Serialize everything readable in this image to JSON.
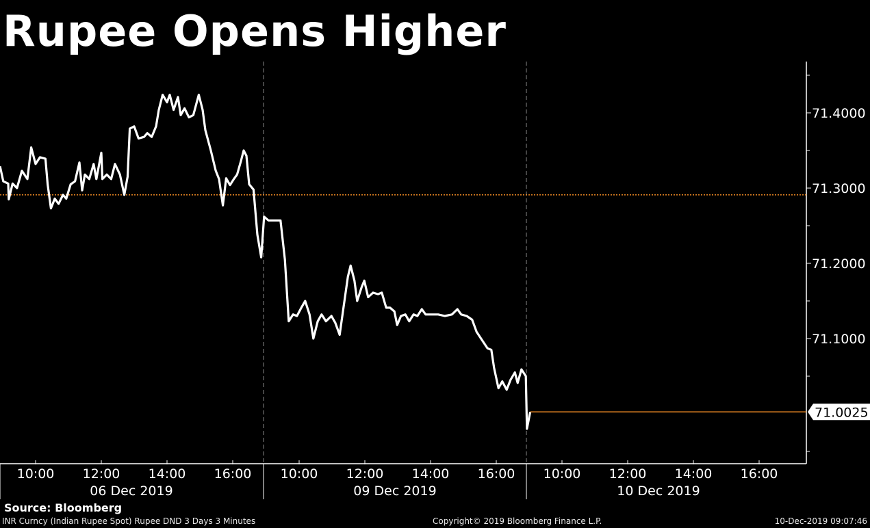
{
  "chart_data": {
    "type": "line",
    "title": "Rupee Opens Higher",
    "ylim": [
      70.95,
      71.47
    ],
    "y_ticks": [
      "71.4000",
      "71.3000",
      "71.2000",
      "71.1000"
    ],
    "y_tick_values": [
      71.4,
      71.3,
      71.2,
      71.1
    ],
    "last_value_label": "71.0025",
    "last_value": 71.0025,
    "reference_line": 71.291,
    "colors": {
      "line": "#ffffff",
      "reference": "#f08a24",
      "last": "#f08a24",
      "background": "#000000"
    },
    "days": [
      {
        "date": "06 Dec 2019",
        "x_ticks": [
          "10:00",
          "12:00",
          "14:00",
          "16:00"
        ],
        "points": [
          [
            "08:55",
            71.329
          ],
          [
            "09:01",
            71.309
          ],
          [
            "09:10",
            71.306
          ],
          [
            "09:11",
            71.285
          ],
          [
            "09:18",
            71.306
          ],
          [
            "09:26",
            71.3
          ],
          [
            "09:35",
            71.323
          ],
          [
            "09:45",
            71.312
          ],
          [
            "09:52",
            71.354
          ],
          [
            "10:00",
            71.332
          ],
          [
            "10:08",
            71.341
          ],
          [
            "10:18",
            71.339
          ],
          [
            "10:22",
            71.305
          ],
          [
            "10:28",
            71.273
          ],
          [
            "10:35",
            71.286
          ],
          [
            "10:42",
            71.279
          ],
          [
            "10:50",
            71.291
          ],
          [
            "10:56",
            71.286
          ],
          [
            "11:04",
            71.305
          ],
          [
            "11:12",
            71.309
          ],
          [
            "11:20",
            71.334
          ],
          [
            "11:25",
            71.297
          ],
          [
            "11:30",
            71.318
          ],
          [
            "11:38",
            71.312
          ],
          [
            "11:46",
            71.332
          ],
          [
            "11:51",
            71.312
          ],
          [
            "12:00",
            71.347
          ],
          [
            "12:02",
            71.312
          ],
          [
            "12:10",
            71.318
          ],
          [
            "12:18",
            71.312
          ],
          [
            "12:25",
            71.332
          ],
          [
            "12:34",
            71.318
          ],
          [
            "12:42",
            71.291
          ],
          [
            "12:48",
            71.315
          ],
          [
            "12:52",
            71.379
          ],
          [
            "13:00",
            71.382
          ],
          [
            "13:08",
            71.366
          ],
          [
            "13:18",
            71.368
          ],
          [
            "13:24",
            71.373
          ],
          [
            "13:32",
            71.368
          ],
          [
            "13:40",
            71.382
          ],
          [
            "13:45",
            71.404
          ],
          [
            "13:52",
            71.424
          ],
          [
            "14:00",
            71.414
          ],
          [
            "14:05",
            71.424
          ],
          [
            "14:12",
            71.404
          ],
          [
            "14:20",
            71.421
          ],
          [
            "14:25",
            71.397
          ],
          [
            "14:32",
            71.406
          ],
          [
            "14:40",
            71.394
          ],
          [
            "14:48",
            71.397
          ],
          [
            "14:58",
            71.424
          ],
          [
            "15:05",
            71.404
          ],
          [
            "15:10",
            71.377
          ],
          [
            "15:20",
            71.35
          ],
          [
            "15:29",
            71.323
          ],
          [
            "15:35",
            71.312
          ],
          [
            "15:42",
            71.277
          ],
          [
            "15:48",
            71.313
          ],
          [
            "15:55",
            71.304
          ],
          [
            "16:02",
            71.312
          ],
          [
            "16:08",
            71.318
          ],
          [
            "16:15",
            71.336
          ],
          [
            "16:20",
            71.35
          ],
          [
            "16:25",
            71.343
          ],
          [
            "16:30",
            71.305
          ],
          [
            "16:38",
            71.298
          ],
          [
            "16:45",
            71.238
          ],
          [
            "16:52",
            71.208
          ]
        ]
      },
      {
        "date": "09 Dec 2019",
        "x_ticks": [
          "10:00",
          "12:00",
          "14:00",
          "16:00"
        ],
        "points": [
          [
            "08:56",
            71.262
          ],
          [
            "09:04",
            71.257
          ],
          [
            "09:14",
            71.257
          ],
          [
            "09:26",
            71.257
          ],
          [
            "09:34",
            71.205
          ],
          [
            "09:41",
            71.123
          ],
          [
            "09:49",
            71.132
          ],
          [
            "09:56",
            71.13
          ],
          [
            "10:04",
            71.141
          ],
          [
            "10:11",
            71.15
          ],
          [
            "10:19",
            71.132
          ],
          [
            "10:26",
            71.1
          ],
          [
            "10:34",
            71.123
          ],
          [
            "10:41",
            71.132
          ],
          [
            "10:49",
            71.123
          ],
          [
            "10:59",
            71.13
          ],
          [
            "11:06",
            71.121
          ],
          [
            "11:14",
            71.105
          ],
          [
            "11:21",
            71.141
          ],
          [
            "11:29",
            71.182
          ],
          [
            "11:34",
            71.197
          ],
          [
            "11:41",
            71.177
          ],
          [
            "11:46",
            71.15
          ],
          [
            "11:54",
            71.168
          ],
          [
            "11:59",
            71.177
          ],
          [
            "12:06",
            71.155
          ],
          [
            "12:15",
            71.161
          ],
          [
            "12:24",
            71.159
          ],
          [
            "12:31",
            71.161
          ],
          [
            "12:39",
            71.141
          ],
          [
            "12:46",
            71.141
          ],
          [
            "12:54",
            71.136
          ],
          [
            "12:59",
            71.118
          ],
          [
            "13:06",
            71.13
          ],
          [
            "13:14",
            71.132
          ],
          [
            "13:21",
            71.123
          ],
          [
            "13:29",
            71.132
          ],
          [
            "13:36",
            71.13
          ],
          [
            "13:44",
            71.139
          ],
          [
            "13:51",
            71.132
          ],
          [
            "14:01",
            71.132
          ],
          [
            "14:14",
            71.132
          ],
          [
            "14:26",
            71.13
          ],
          [
            "14:39",
            71.132
          ],
          [
            "14:49",
            71.139
          ],
          [
            "14:56",
            71.132
          ],
          [
            "15:06",
            71.13
          ],
          [
            "15:16",
            71.125
          ],
          [
            "15:24",
            71.109
          ],
          [
            "15:34",
            71.098
          ],
          [
            "15:44",
            71.087
          ],
          [
            "15:51",
            71.085
          ],
          [
            "15:56",
            71.061
          ],
          [
            "16:04",
            71.034
          ],
          [
            "16:11",
            71.043
          ],
          [
            "16:19",
            71.032
          ],
          [
            "16:26",
            71.045
          ],
          [
            "16:34",
            71.055
          ],
          [
            "16:39",
            71.041
          ],
          [
            "16:46",
            71.059
          ],
          [
            "16:54",
            71.05
          ]
        ]
      },
      {
        "date": "10 Dec 2019",
        "x_ticks": [
          "10:00",
          "12:00",
          "14:00",
          "16:00"
        ],
        "points": [
          [
            "08:56",
            70.98
          ],
          [
            "09:02",
            71.0025
          ]
        ]
      }
    ]
  },
  "footer": {
    "source": "Source: Bloomberg",
    "description": "INR Curncy (Indian Rupee Spot) Rupee DND 3 Days 3 Minutes",
    "copyright": "Copyright© 2019 Bloomberg Finance L.P.",
    "timestamp": "10-Dec-2019 09:07:46"
  }
}
